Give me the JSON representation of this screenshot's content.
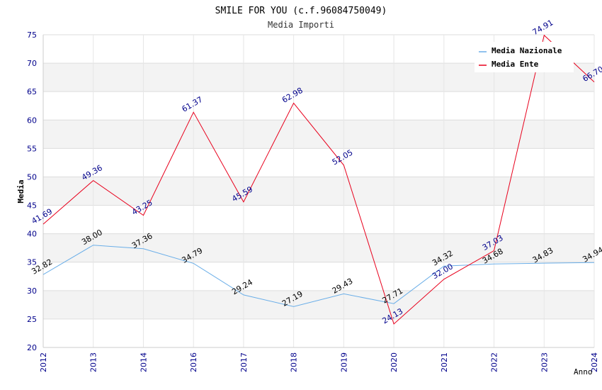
{
  "chart_data": {
    "type": "line",
    "title": "SMILE FOR YOU (c.f.96084750049)",
    "subtitle": "Media Importi",
    "xlabel": "Anno",
    "ylabel": "Media",
    "categories": [
      "2012",
      "2013",
      "2014",
      "2016",
      "2017",
      "2018",
      "2019",
      "2020",
      "2021",
      "2022",
      "2023",
      "2024"
    ],
    "ylim": [
      20,
      75
    ],
    "yticks": [
      20,
      25,
      30,
      35,
      40,
      45,
      50,
      55,
      60,
      65,
      70,
      75
    ],
    "ytick_labels": [
      "20",
      "25",
      "30",
      "35",
      "40",
      "45",
      "50",
      "55",
      "60",
      "65",
      "70",
      "75"
    ],
    "grid": true,
    "legend_position": "top-right",
    "series": [
      {
        "name": "Media Nazionale",
        "color": "#6aaee8",
        "label_color": "#000000",
        "values": [
          32.82,
          38.0,
          37.36,
          34.79,
          29.24,
          27.19,
          29.43,
          27.71,
          34.32,
          34.68,
          34.83,
          34.94
        ],
        "labels": [
          "32.82",
          "38.00",
          "37.36",
          "34.79",
          "29.24",
          "27.19",
          "29.43",
          "27.71",
          "34.32",
          "34.68",
          "34.83",
          "34.94"
        ]
      },
      {
        "name": "Media Ente",
        "color": "#e8001c",
        "label_color": "#00008b",
        "values": [
          41.69,
          49.36,
          43.25,
          61.37,
          45.59,
          62.98,
          52.05,
          24.13,
          32.0,
          37.03,
          74.91,
          66.7
        ],
        "labels": [
          "41.69",
          "49.36",
          "43.25",
          "61.37",
          "45.59",
          "62.98",
          "52.05",
          "24.13",
          "32.00",
          "37.03",
          "74.91",
          "66.70"
        ]
      }
    ]
  }
}
